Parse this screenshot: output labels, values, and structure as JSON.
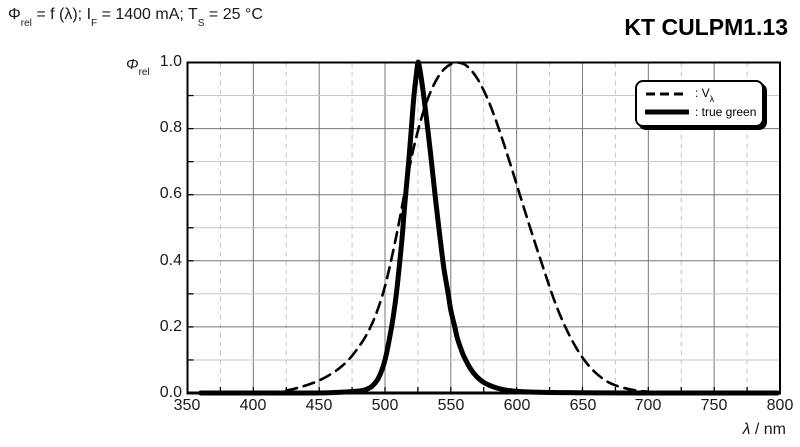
{
  "header": {
    "product": "KT CULPM1.13"
  },
  "title": {
    "phi": "Φ",
    "phi_sub": "rel",
    "seg1": " = f (λ); I",
    "i_sub": "F",
    "seg2": " = 1400 mA; T",
    "t_sub": "S",
    "seg3": " = 25 °C"
  },
  "axes": {
    "y_label": {
      "phi": "Φ",
      "sub": "rel"
    },
    "x_label": {
      "lambda": "λ",
      "rest": " / nm"
    },
    "x_ticks": [
      "350",
      "400",
      "450",
      "500",
      "550",
      "600",
      "650",
      "700",
      "750",
      "800"
    ],
    "y_ticks": [
      "1.0",
      "0.8",
      "0.6",
      "0.4",
      "0.2",
      "0.0"
    ]
  },
  "legend": {
    "items": [
      {
        "prefix": ": V",
        "sub": "λ",
        "line": "dashed"
      },
      {
        "label": ": true green",
        "line": "solid-thick"
      }
    ]
  },
  "colors": {
    "curve": "#000000",
    "grid_major": "#777777",
    "grid_minor": "#c6c6c6",
    "frame": "#000000",
    "background": "#ffffff",
    "text": "#1a1a1a"
  },
  "chart_data": {
    "type": "line",
    "title": "Phi_rel = f (lambda); I_F = 1400 mA; T_S = 25 °C",
    "xlabel": "lambda / nm",
    "ylabel": "Phi_rel",
    "xlim": [
      350,
      800
    ],
    "ylim": [
      0,
      1
    ],
    "x_major_step": 50,
    "x_minor_step": 25,
    "y_major_step": 0.2,
    "y_minor_step": 0.1,
    "grid": true,
    "legend_position": "top-right",
    "series": [
      {
        "name": "V_lambda",
        "line": "dashed",
        "points": [
          [
            425,
            0.0073
          ],
          [
            430,
            0.0116
          ],
          [
            435,
            0.0168
          ],
          [
            440,
            0.023
          ],
          [
            445,
            0.0298
          ],
          [
            450,
            0.038
          ],
          [
            455,
            0.048
          ],
          [
            460,
            0.06
          ],
          [
            465,
            0.0739
          ],
          [
            470,
            0.091
          ],
          [
            475,
            0.1126
          ],
          [
            480,
            0.139
          ],
          [
            485,
            0.1693
          ],
          [
            490,
            0.208
          ],
          [
            495,
            0.2586
          ],
          [
            500,
            0.323
          ],
          [
            505,
            0.4073
          ],
          [
            510,
            0.503
          ],
          [
            515,
            0.6082
          ],
          [
            520,
            0.71
          ],
          [
            525,
            0.7932
          ],
          [
            530,
            0.862
          ],
          [
            535,
            0.9149
          ],
          [
            540,
            0.954
          ],
          [
            545,
            0.9803
          ],
          [
            550,
            0.995
          ],
          [
            555,
            1.0
          ],
          [
            560,
            0.995
          ],
          [
            565,
            0.9786
          ],
          [
            570,
            0.952
          ],
          [
            575,
            0.9154
          ],
          [
            580,
            0.87
          ],
          [
            585,
            0.8163
          ],
          [
            590,
            0.757
          ],
          [
            595,
            0.6949
          ],
          [
            600,
            0.631
          ],
          [
            605,
            0.5668
          ],
          [
            610,
            0.503
          ],
          [
            615,
            0.4412
          ],
          [
            620,
            0.381
          ],
          [
            625,
            0.321
          ],
          [
            630,
            0.265
          ],
          [
            635,
            0.217
          ],
          [
            640,
            0.175
          ],
          [
            645,
            0.1382
          ],
          [
            650,
            0.107
          ],
          [
            655,
            0.0816
          ],
          [
            660,
            0.061
          ],
          [
            665,
            0.0446
          ],
          [
            670,
            0.032
          ],
          [
            675,
            0.0232
          ],
          [
            680,
            0.017
          ],
          [
            685,
            0.0119
          ],
          [
            690,
            0.0082
          ],
          [
            695,
            0.0057
          ],
          [
            700,
            0.0041
          ]
        ]
      },
      {
        "name": "true green",
        "line": "solid-thick",
        "points": [
          [
            360,
            0
          ],
          [
            440,
            0
          ],
          [
            460,
            0.001
          ],
          [
            470,
            0.003
          ],
          [
            480,
            0.006
          ],
          [
            485,
            0.01
          ],
          [
            490,
            0.02
          ],
          [
            495,
            0.045
          ],
          [
            500,
            0.1
          ],
          [
            505,
            0.2
          ],
          [
            508,
            0.28
          ],
          [
            510,
            0.35
          ],
          [
            513,
            0.47
          ],
          [
            515,
            0.57
          ],
          [
            518,
            0.7
          ],
          [
            520,
            0.8
          ],
          [
            522,
            0.9
          ],
          [
            524,
            0.97
          ],
          [
            525,
            1.0
          ],
          [
            526,
            0.99
          ],
          [
            528,
            0.94
          ],
          [
            530,
            0.88
          ],
          [
            533,
            0.78
          ],
          [
            535,
            0.71
          ],
          [
            538,
            0.6
          ],
          [
            540,
            0.53
          ],
          [
            543,
            0.43
          ],
          [
            545,
            0.37
          ],
          [
            548,
            0.3
          ],
          [
            550,
            0.25
          ],
          [
            553,
            0.2
          ],
          [
            555,
            0.165
          ],
          [
            558,
            0.13
          ],
          [
            560,
            0.11
          ],
          [
            565,
            0.073
          ],
          [
            570,
            0.048
          ],
          [
            575,
            0.032
          ],
          [
            580,
            0.022
          ],
          [
            585,
            0.015
          ],
          [
            590,
            0.01
          ],
          [
            595,
            0.007
          ],
          [
            600,
            0.005
          ],
          [
            610,
            0.003
          ],
          [
            620,
            0.002
          ],
          [
            640,
            0.001
          ],
          [
            660,
            0.0005
          ],
          [
            700,
            0
          ],
          [
            798,
            0
          ]
        ]
      }
    ]
  }
}
